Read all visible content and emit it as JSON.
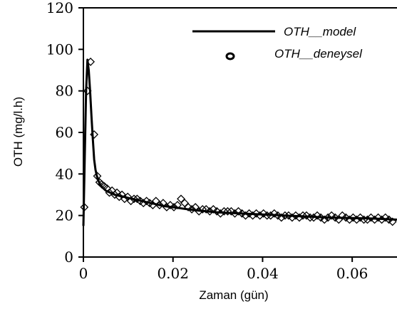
{
  "chart_data": {
    "type": "scatter",
    "title": "",
    "xlabel": "Zaman (gün)",
    "ylabel": "OTH (mg/l.h)",
    "xlim": [
      0,
      0.07
    ],
    "ylim": [
      0,
      120
    ],
    "x_ticks": [
      0,
      0.02,
      0.04,
      0.06
    ],
    "x_tick_labels": [
      "0",
      "0.02",
      "0.04",
      "0.06"
    ],
    "y_ticks": [
      0,
      20,
      40,
      60,
      80,
      100,
      120
    ],
    "y_tick_labels": [
      "0",
      "20",
      "40",
      "60",
      "80",
      "100",
      "120"
    ],
    "grid": false,
    "legend_position": "top-right",
    "colors": {
      "line": "#000000",
      "marker": "#000000"
    },
    "series": [
      {
        "name": "OTH__model",
        "kind": "line",
        "x": [
          0,
          0.0003,
          0.0006,
          0.0009,
          0.0012,
          0.0015,
          0.0018,
          0.0021,
          0.0024,
          0.0027,
          0.003,
          0.0035,
          0.004,
          0.005,
          0.006,
          0.007,
          0.008,
          0.009,
          0.01,
          0.012,
          0.014,
          0.016,
          0.018,
          0.02,
          0.025,
          0.03,
          0.035,
          0.04,
          0.045,
          0.05,
          0.055,
          0.06,
          0.065,
          0.07
        ],
        "y": [
          15,
          48,
          80,
          95,
          90,
          80,
          68,
          57,
          47,
          42,
          39,
          36,
          34,
          32,
          31,
          30,
          29.5,
          29,
          28.5,
          27.5,
          26.5,
          25.5,
          24.5,
          24,
          22.5,
          21.5,
          21,
          20.5,
          20,
          19.5,
          19,
          18.8,
          18.5,
          18
        ]
      },
      {
        "name": "OTH__deneysel",
        "kind": "markers",
        "marker": "diamond",
        "x": [
          0.0002,
          0.0009,
          0.0016,
          0.0024,
          0.0031,
          0.0036,
          0.0041,
          0.0047,
          0.0053,
          0.0058,
          0.0064,
          0.007,
          0.0075,
          0.008,
          0.0086,
          0.0092,
          0.0099,
          0.0106,
          0.0113,
          0.012,
          0.0127,
          0.0134,
          0.0141,
          0.0148,
          0.0155,
          0.0162,
          0.017,
          0.0178,
          0.0186,
          0.0194,
          0.0202,
          0.021,
          0.0218,
          0.0226,
          0.0234,
          0.0242,
          0.025,
          0.0258,
          0.0266,
          0.0274,
          0.0282,
          0.029,
          0.0298,
          0.0306,
          0.0314,
          0.0322,
          0.033,
          0.0338,
          0.0346,
          0.0354,
          0.0362,
          0.037,
          0.0378,
          0.0386,
          0.0394,
          0.0402,
          0.041,
          0.0418,
          0.0426,
          0.0434,
          0.0442,
          0.045,
          0.0458,
          0.0466,
          0.0474,
          0.0482,
          0.049,
          0.0498,
          0.0506,
          0.0514,
          0.0522,
          0.053,
          0.0538,
          0.0546,
          0.0554,
          0.0562,
          0.057,
          0.0578,
          0.0586,
          0.0594,
          0.0602,
          0.061,
          0.0618,
          0.0626,
          0.0634,
          0.0642,
          0.065,
          0.0658,
          0.0666,
          0.0674,
          0.0682,
          0.069
        ],
        "y": [
          24,
          80,
          94,
          59,
          39,
          36,
          35,
          34,
          33,
          31,
          32,
          30,
          31,
          29,
          30,
          28,
          29,
          27,
          28,
          28,
          27,
          26,
          27,
          26,
          25,
          27,
          25,
          26,
          24,
          25,
          24,
          25,
          28,
          26,
          24,
          23,
          24,
          22,
          23,
          23,
          22,
          23,
          22,
          21,
          22,
          22,
          22,
          21,
          22,
          21,
          20,
          21,
          20,
          21,
          20,
          21,
          20,
          20,
          21,
          20,
          19,
          20,
          20,
          19,
          20,
          19,
          20,
          20,
          19,
          19,
          20,
          19,
          18,
          19,
          20,
          19,
          18,
          20,
          19,
          18,
          19,
          18,
          19,
          18,
          18,
          19,
          18,
          19,
          18,
          19,
          18,
          17
        ]
      }
    ]
  }
}
